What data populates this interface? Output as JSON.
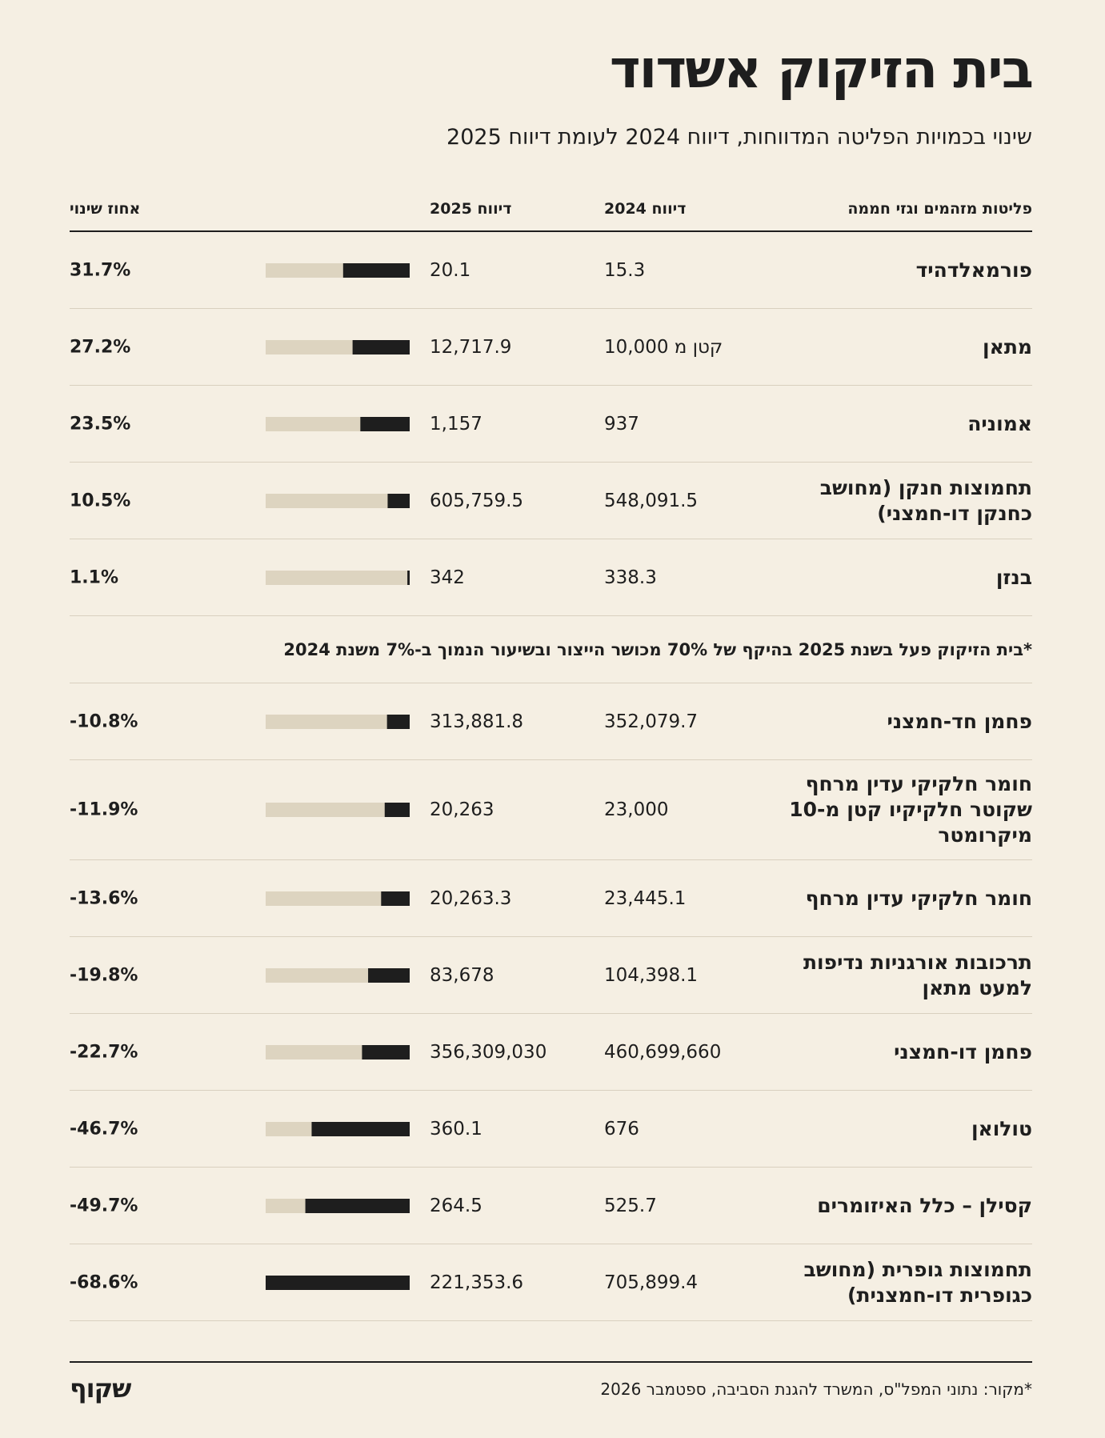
{
  "header": {
    "title": "בית הזיקוק אשדוד",
    "subtitle": "שינוי בכמויות הפליטה המדווחות, דיווח 2024 לעומת דיווח 2025"
  },
  "table": {
    "columns": [
      "פליטות מזהמים וגזי חממה",
      "דיווח 2024",
      "דיווח 2025",
      "אחוז שינוי"
    ],
    "groups": [
      {
        "rows": [
          {
            "pollutant": "פורמאלדהיד",
            "report_2024": "15.3",
            "report_2025": "20.1",
            "change": 31.7,
            "change_label": "31.7%"
          },
          {
            "pollutant": "מתאן",
            "report_2024": "קטן מ 10,000",
            "report_2025": "12,717.9",
            "change": 27.2,
            "change_label": "27.2%"
          },
          {
            "pollutant": "אמוניה",
            "report_2024": "937",
            "report_2025": "1,157",
            "change": 23.5,
            "change_label": "23.5%"
          },
          {
            "pollutant": "תחמוצות חנקן (מחושב כחנקן דו-חמצני)",
            "report_2024": "548,091.5",
            "report_2025": "605,759.5",
            "change": 10.5,
            "change_label": "10.5%"
          },
          {
            "pollutant": "בנזן",
            "report_2024": "338.3",
            "report_2025": "342",
            "change": 1.1,
            "change_label": "1.1%"
          }
        ]
      },
      {
        "note": "*בית הזיקוק פעל בשנת 2025 בהיקף של 70% מכושר הייצור ובשיעור הנמוך ב-7% משנת 2024",
        "rows": [
          {
            "pollutant": "פחמן חד-חמצני",
            "report_2024": "352,079.7",
            "report_2025": "313,881.8",
            "change": -10.8,
            "change_label": "-10.8%"
          },
          {
            "pollutant": "חומר חלקיקי עדין מרחף שקוטר חלקיקיו קטן מ-10 מיקרומטר",
            "report_2024": "23,000",
            "report_2025": "20,263",
            "change": -11.9,
            "change_label": "-11.9%"
          },
          {
            "pollutant": "חומר חלקיקי עדין מרחף",
            "report_2024": "23,445.1",
            "report_2025": "20,263.3",
            "change": -13.6,
            "change_label": "-13.6%"
          },
          {
            "pollutant": "תרכובות אורגניות נדיפות למעט מתאן",
            "report_2024": "104,398.1",
            "report_2025": "83,678",
            "change": -19.8,
            "change_label": "-19.8%"
          },
          {
            "pollutant": "פחמן דו-חמצני",
            "report_2024": "460,699,660",
            "report_2025": "356,309,030",
            "change": -22.7,
            "change_label": "-22.7%"
          },
          {
            "pollutant": "טולואן",
            "report_2024": "676",
            "report_2025": "360.1",
            "change": -46.7,
            "change_label": "-46.7%"
          },
          {
            "pollutant": "קסילן – כלל האיזומרים",
            "report_2024": "525.7",
            "report_2025": "264.5",
            "change": -49.7,
            "change_label": "-49.7%"
          },
          {
            "pollutant": "תחמוצות גופרית (מחושב כגופרית דו-חמצנית)",
            "report_2024": "705,899.4",
            "report_2025": "221,353.6",
            "change": -68.6,
            "change_label": "-68.6%"
          }
        ]
      }
    ]
  },
  "footer": {
    "source": "*מקור: נתוני המפל\"ס, המשרד להגנת הסביבה, ספטמבר 2026",
    "logo": "שקוף"
  }
}
